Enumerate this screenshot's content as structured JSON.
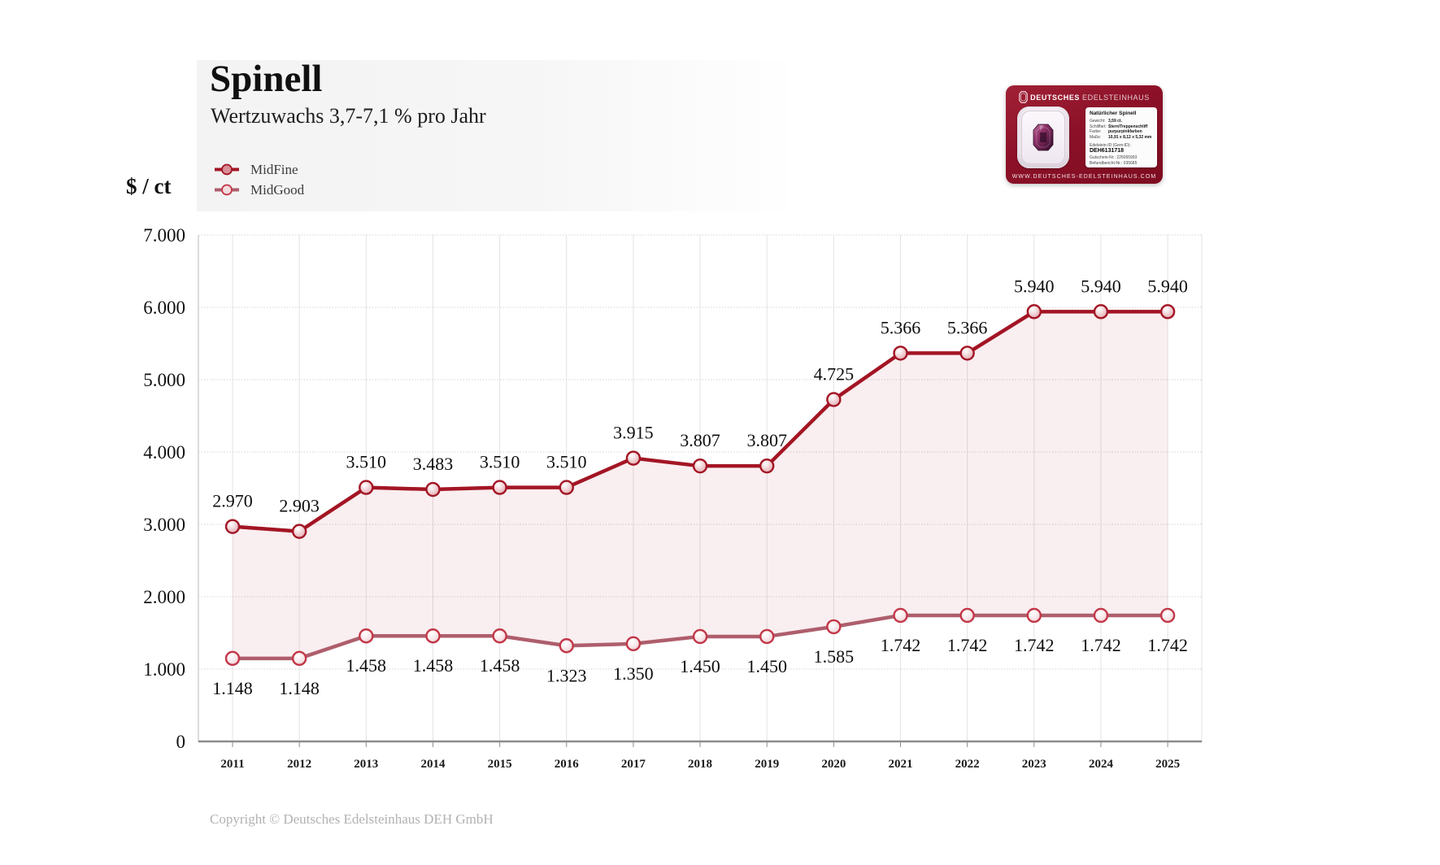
{
  "header": {
    "title": "Spinell",
    "subtitle": "Wertzuwachs 3,7-7,1 % pro Jahr",
    "unit_label": "$ / ct",
    "copyright": "Copyright © Deutsches Edelsteinhaus DEH GmbH"
  },
  "legend": [
    {
      "name": "MidFine",
      "color": "#a31524",
      "marker_fill": "#d98f97"
    },
    {
      "name": "MidGood",
      "color": "#ae5e6c",
      "marker_fill": "#f2dadd",
      "marker_stroke": "#c23748"
    }
  ],
  "chart_data": {
    "type": "line",
    "title": "Spinell",
    "subtitle": "Wertzuwachs 3,7-7,1 % pro Jahr",
    "ylabel": "$ / ct",
    "xlabel": "",
    "categories": [
      "2011",
      "2012",
      "2013",
      "2014",
      "2015",
      "2016",
      "2017",
      "2018",
      "2019",
      "2020",
      "2021",
      "2022",
      "2023",
      "2024",
      "2025"
    ],
    "series": [
      {
        "name": "MidFine",
        "color": "#a31524",
        "values": [
          2970,
          2903,
          3510,
          3483,
          3510,
          3510,
          3915,
          3807,
          3807,
          4725,
          5366,
          5366,
          5940,
          5940,
          5940
        ]
      },
      {
        "name": "MidGood",
        "color": "#ae5e6c",
        "values": [
          1148,
          1148,
          1458,
          1458,
          1458,
          1323,
          1350,
          1450,
          1450,
          1585,
          1742,
          1742,
          1742,
          1742,
          1742
        ]
      }
    ],
    "ylim": [
      0,
      7000
    ],
    "ytick_step": 1000,
    "ytick_labels": [
      "0",
      "1.000",
      "2.000",
      "3.000",
      "4.000",
      "5.000",
      "6.000",
      "7.000"
    ],
    "grid": true,
    "legend_position": "top-left",
    "area_between_series": true,
    "area_fill": "rgba(163,21,36,0.07)",
    "number_format": "de-thousands-dot"
  },
  "card": {
    "brand_bold": "DEUTSCHES",
    "brand_light": "EDELSTEINHAUS",
    "product_title": "Natürlicher Spinell",
    "specs": [
      {
        "label": "Gewicht:",
        "value": "3,59 ct."
      },
      {
        "label": "Schliffart:",
        "value": "Stern/Treppenschliff"
      },
      {
        "label": "Farbe:",
        "value": "purpurpinkfarben"
      },
      {
        "label": "Maße:",
        "value": "10,91 x 8,12 x 5,32 mm"
      }
    ],
    "gem_id_label": "Edelstein-ID (Gem-ID):",
    "gem_id": "DEH6131718",
    "voucher": "Gutschein-Nr.: 225065993",
    "report": "Befundbericht-Nr.: 035685",
    "website": "WWW.DEUTSCHES-EDELSTEINHAUS.COM"
  }
}
